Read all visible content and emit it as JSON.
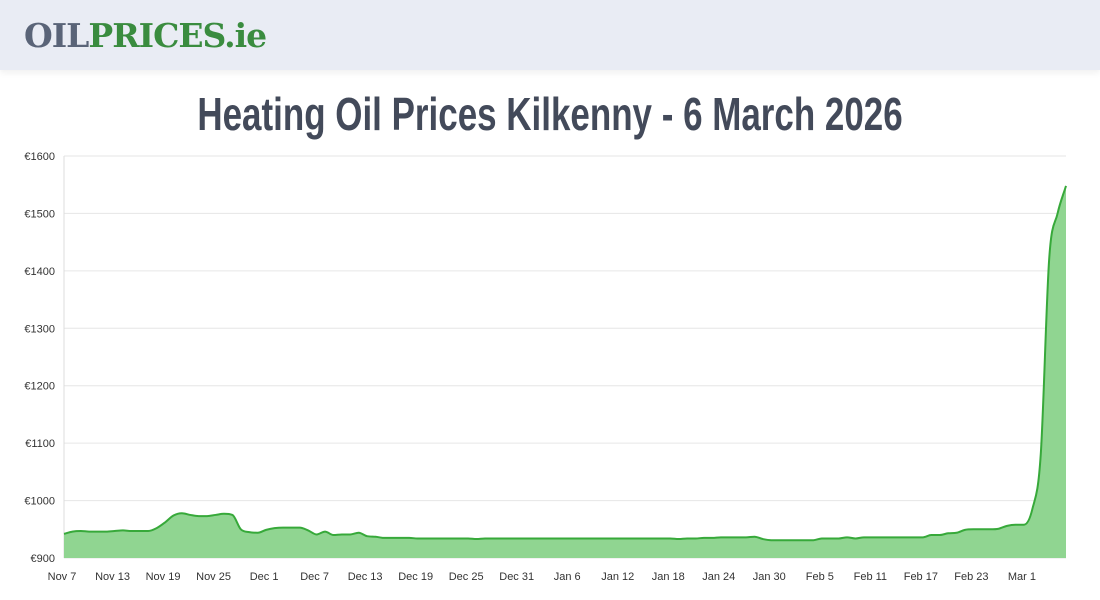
{
  "header": {
    "logo_part1": "OIL",
    "logo_part2": "PRICES.ie"
  },
  "title": "Heating Oil Prices Kilkenny - 6 March 2026",
  "chart_data": {
    "type": "area",
    "title": "",
    "xlabel": "",
    "ylabel": "",
    "ylim": [
      900,
      1600
    ],
    "grid": true,
    "colors": {
      "line": "#37a93a",
      "fill": "#90d591",
      "grid": "#e6e6e6"
    },
    "y_ticks": [
      "€900",
      "€1000",
      "€1100",
      "€1200",
      "€1300",
      "€1400",
      "€1500",
      "€1600"
    ],
    "y_tick_values": [
      900,
      1000,
      1100,
      1200,
      1300,
      1400,
      1500,
      1600
    ],
    "x_start": "Nov 7",
    "x_end": "Mar 6",
    "x_ticks": [
      "Nov 7",
      "Nov 13",
      "Nov 19",
      "Nov 25",
      "Dec 1",
      "Dec 7",
      "Dec 13",
      "Dec 19",
      "Dec 25",
      "Dec 31",
      "Jan 6",
      "Jan 12",
      "Jan 18",
      "Jan 24",
      "Jan 30",
      "Feb 5",
      "Feb 11",
      "Feb 17",
      "Feb 23",
      "Mar 1"
    ],
    "x_tick_days": [
      0,
      6,
      12,
      18,
      24,
      30,
      36,
      42,
      48,
      54,
      60,
      66,
      72,
      78,
      84,
      90,
      96,
      102,
      108,
      114
    ],
    "values": [
      942,
      946,
      947,
      946,
      946,
      946,
      947,
      948,
      947,
      947,
      947,
      952,
      962,
      974,
      978,
      975,
      973,
      973,
      975,
      977,
      975,
      950,
      945,
      944,
      949,
      952,
      953,
      953,
      953,
      948,
      941,
      946,
      940,
      941,
      941,
      944,
      938,
      937,
      935,
      935,
      935,
      935,
      934,
      934,
      934,
      934,
      934,
      934,
      934,
      933,
      934,
      934,
      934,
      934,
      934,
      934,
      934,
      934,
      934,
      934,
      934,
      934,
      934,
      934,
      934,
      934,
      934,
      934,
      934,
      934,
      934,
      934,
      934,
      933,
      934,
      934,
      935,
      935,
      936,
      936,
      936,
      936,
      937,
      933,
      931,
      931,
      931,
      931,
      931,
      931,
      934,
      934,
      934,
      936,
      934,
      936,
      936,
      936,
      936,
      936,
      936,
      936,
      936,
      940,
      940,
      943,
      944,
      949,
      950,
      950,
      950,
      951,
      956,
      958,
      958,
      985,
      1080,
      1420,
      1500,
      1548
    ]
  }
}
